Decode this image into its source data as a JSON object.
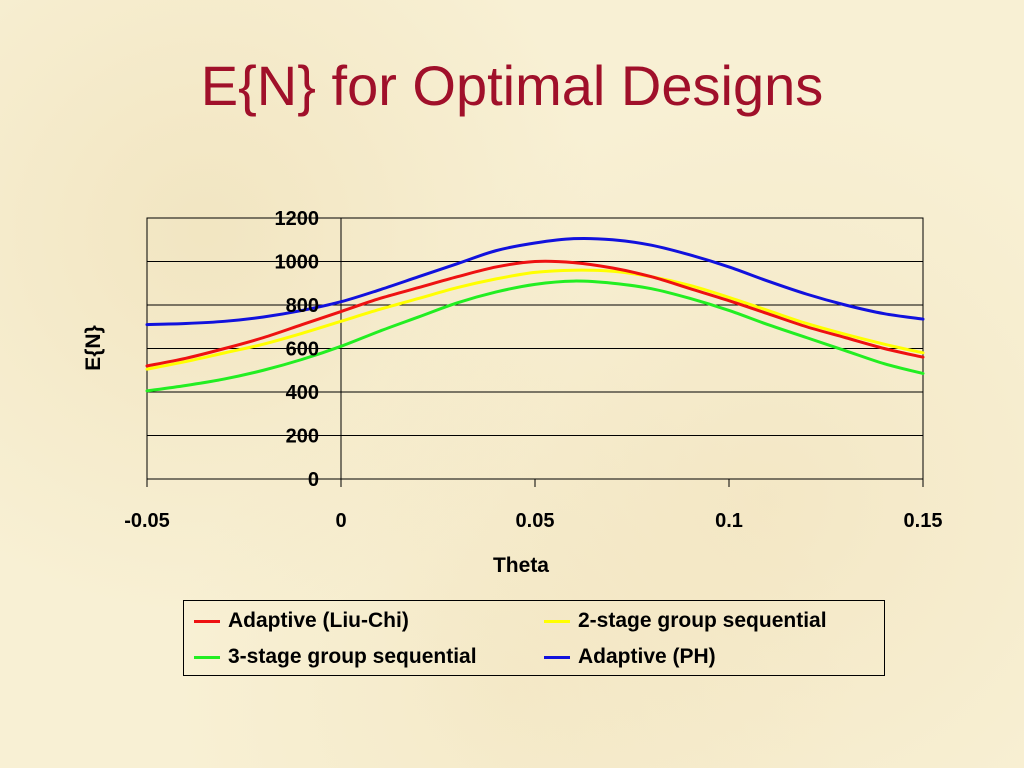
{
  "slide": {
    "title": "E{N} for Optimal Designs"
  },
  "chart_data": {
    "type": "line",
    "title": "E{N} for Optimal Designs",
    "xlabel": "Theta",
    "ylabel": "E{N}",
    "xlim": [
      -0.05,
      0.15
    ],
    "ylim": [
      0,
      1200
    ],
    "x_ticks": [
      "-0.05",
      "0",
      "0.05",
      "0.1",
      "0.15"
    ],
    "x_tick_values": [
      -0.05,
      0,
      0.05,
      0.1,
      0.15
    ],
    "y_ticks": [
      "0",
      "200",
      "400",
      "600",
      "800",
      "1000",
      "1200"
    ],
    "y_tick_values": [
      0,
      200,
      400,
      600,
      800,
      1000,
      1200
    ],
    "grid": "horizontal",
    "legend_position": "bottom",
    "x": [
      -0.05,
      -0.04,
      -0.03,
      -0.02,
      -0.01,
      0,
      0.01,
      0.02,
      0.03,
      0.04,
      0.05,
      0.06,
      0.07,
      0.08,
      0.09,
      0.1,
      0.11,
      0.12,
      0.13,
      0.14,
      0.15
    ],
    "series": [
      {
        "name": "Adaptive (Liu-Chi)",
        "color": "#ee1111",
        "values": [
          520,
          555,
          600,
          650,
          710,
          770,
          830,
          880,
          930,
          975,
          1000,
          995,
          970,
          930,
          875,
          820,
          760,
          700,
          650,
          600,
          560
        ]
      },
      {
        "name": "2-stage group sequential",
        "color": "#ffff00",
        "values": [
          505,
          540,
          580,
          620,
          670,
          725,
          780,
          830,
          880,
          920,
          950,
          960,
          955,
          930,
          890,
          835,
          775,
          715,
          665,
          620,
          580
        ]
      },
      {
        "name": "3-stage group sequential",
        "color": "#22ee22",
        "values": [
          405,
          430,
          460,
          500,
          550,
          610,
          680,
          745,
          810,
          860,
          895,
          910,
          900,
          875,
          830,
          775,
          710,
          650,
          590,
          530,
          485
        ]
      },
      {
        "name": "Adaptive (PH)",
        "color": "#1111dd",
        "values": [
          710,
          715,
          725,
          745,
          775,
          815,
          870,
          930,
          990,
          1050,
          1085,
          1105,
          1100,
          1075,
          1030,
          975,
          910,
          850,
          800,
          760,
          735
        ]
      }
    ]
  }
}
